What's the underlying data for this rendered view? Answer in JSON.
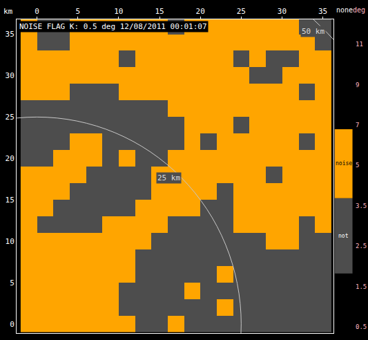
{
  "chart_data": {
    "type": "heatmap",
    "title": "NOISE FLAG K: 0.5 deg 12/08/2011 00:01:07",
    "axis_unit": "km",
    "xlim": [
      -2.5,
      36.3
    ],
    "ylim": [
      -1.1,
      36.8
    ],
    "xticks": [
      0,
      5,
      10,
      15,
      20,
      25,
      30,
      35
    ],
    "yticks": [
      0,
      5,
      10,
      15,
      20,
      25,
      30,
      35
    ],
    "grid": false,
    "x": [
      -1,
      1,
      3,
      5,
      7,
      9,
      11,
      13,
      15,
      17,
      19,
      21,
      23,
      25,
      27,
      29,
      31,
      33,
      35
    ],
    "y": [
      0,
      2,
      4,
      6,
      8,
      10,
      12,
      14,
      16,
      18,
      20,
      22,
      24,
      26,
      28,
      30,
      32,
      34,
      36
    ],
    "cells": [
      [
        1,
        1,
        1,
        1,
        1,
        1,
        1,
        0,
        0,
        1,
        0,
        0,
        0,
        0,
        0,
        0,
        0,
        0,
        0
      ],
      [
        1,
        1,
        1,
        1,
        1,
        1,
        0,
        0,
        0,
        0,
        0,
        0,
        1,
        0,
        0,
        0,
        0,
        0,
        0
      ],
      [
        1,
        1,
        1,
        1,
        1,
        1,
        0,
        0,
        0,
        0,
        1,
        0,
        0,
        0,
        0,
        0,
        0,
        0,
        0
      ],
      [
        1,
        1,
        1,
        1,
        1,
        1,
        1,
        0,
        0,
        0,
        0,
        0,
        1,
        0,
        0,
        0,
        0,
        0,
        0
      ],
      [
        1,
        1,
        1,
        1,
        1,
        1,
        1,
        0,
        0,
        0,
        0,
        0,
        0,
        0,
        0,
        0,
        0,
        0,
        0
      ],
      [
        1,
        1,
        1,
        1,
        1,
        1,
        1,
        1,
        0,
        0,
        0,
        0,
        0,
        0,
        0,
        1,
        1,
        0,
        0
      ],
      [
        1,
        0,
        0,
        0,
        0,
        1,
        1,
        1,
        1,
        0,
        0,
        0,
        0,
        1,
        1,
        1,
        1,
        0,
        1
      ],
      [
        1,
        1,
        0,
        0,
        0,
        0,
        0,
        1,
        1,
        1,
        1,
        0,
        0,
        1,
        1,
        1,
        1,
        1,
        1
      ],
      [
        1,
        1,
        1,
        0,
        0,
        0,
        0,
        0,
        1,
        1,
        1,
        1,
        0,
        1,
        1,
        1,
        1,
        1,
        1
      ],
      [
        1,
        1,
        1,
        1,
        0,
        0,
        0,
        0,
        1,
        1,
        1,
        1,
        1,
        1,
        1,
        0,
        1,
        1,
        1
      ],
      [
        0,
        0,
        1,
        1,
        1,
        0,
        1,
        0,
        0,
        1,
        1,
        1,
        1,
        1,
        1,
        1,
        1,
        1,
        1
      ],
      [
        0,
        0,
        0,
        1,
        1,
        0,
        0,
        0,
        0,
        0,
        1,
        0,
        1,
        1,
        1,
        1,
        1,
        0,
        1
      ],
      [
        0,
        0,
        0,
        0,
        0,
        0,
        0,
        0,
        0,
        0,
        1,
        1,
        1,
        0,
        1,
        1,
        1,
        1,
        1
      ],
      [
        0,
        0,
        0,
        0,
        0,
        0,
        0,
        0,
        0,
        1,
        1,
        1,
        1,
        1,
        1,
        1,
        1,
        1,
        1
      ],
      [
        1,
        1,
        1,
        0,
        0,
        0,
        1,
        1,
        1,
        1,
        1,
        1,
        1,
        1,
        1,
        1,
        1,
        0,
        1
      ],
      [
        1,
        1,
        1,
        1,
        1,
        1,
        1,
        1,
        1,
        1,
        1,
        1,
        1,
        1,
        0,
        0,
        1,
        1,
        1
      ],
      [
        1,
        1,
        1,
        1,
        1,
        1,
        0,
        1,
        1,
        1,
        1,
        1,
        1,
        0,
        1,
        0,
        0,
        1,
        1
      ],
      [
        1,
        0,
        0,
        1,
        1,
        1,
        1,
        1,
        1,
        1,
        1,
        1,
        1,
        1,
        1,
        1,
        1,
        1,
        0
      ],
      [
        1,
        0,
        0,
        1,
        1,
        1,
        1,
        1,
        1,
        0,
        1,
        1,
        1,
        1,
        1,
        1,
        1,
        0,
        0
      ]
    ],
    "colorbar": {
      "top_label": "none",
      "categories": [
        {
          "value": 0,
          "label": "not",
          "color": "#4d4d4d"
        },
        {
          "value": 1,
          "label": "noise",
          "color": "#ffa500"
        }
      ]
    },
    "elevation_scale": {
      "unit": "deg",
      "ticks": [
        11,
        9,
        7,
        5,
        3.5,
        2.5,
        1.5,
        0.5
      ]
    },
    "radar_site": {
      "x": 0,
      "y": 0
    },
    "range_rings": [
      {
        "radius": 25,
        "label": "25 km"
      },
      {
        "radius": 50,
        "label": "50 km"
      }
    ]
  }
}
